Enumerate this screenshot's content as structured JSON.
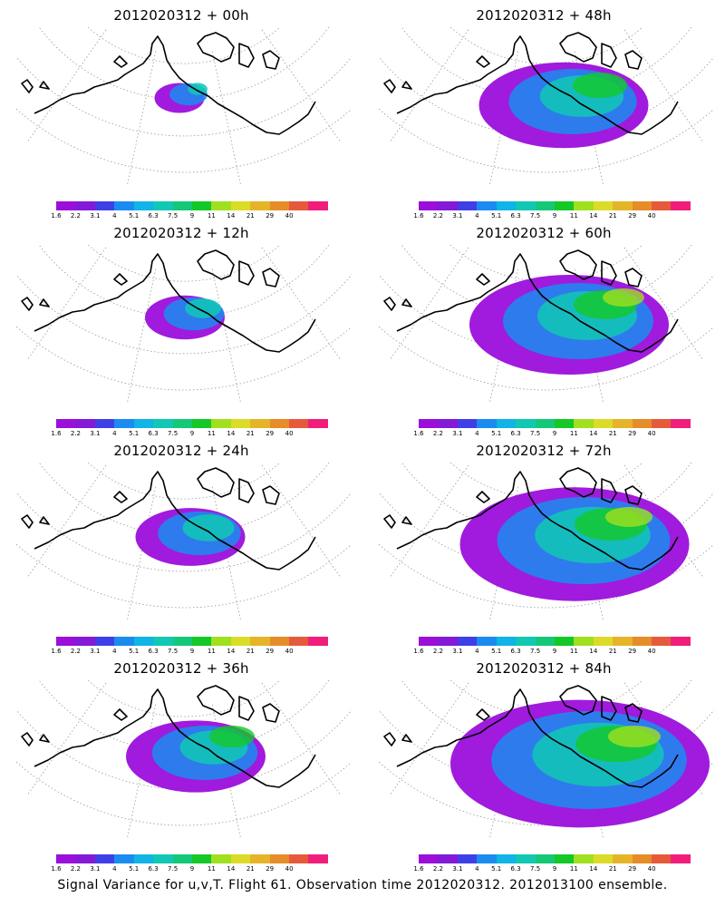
{
  "panels": [
    {
      "title": "2012020312  +  00h",
      "level": 0
    },
    {
      "title": "2012020312  +  48h",
      "level": 4
    },
    {
      "title": "2012020312  +  12h",
      "level": 1
    },
    {
      "title": "2012020312  +  60h",
      "level": 5
    },
    {
      "title": "2012020312  +  24h",
      "level": 2
    },
    {
      "title": "2012020312  +  72h",
      "level": 6
    },
    {
      "title": "2012020312  +  36h",
      "level": 3
    },
    {
      "title": "2012020312  +  84h",
      "level": 7
    }
  ],
  "colorbar": {
    "labels": [
      "1.6",
      "2.2",
      "3.1",
      "4",
      "5.1",
      "6.3",
      "7.5",
      "9",
      "11",
      "14",
      "21",
      "29",
      "40"
    ],
    "colors": [
      "#9b0fdb",
      "#8419d6",
      "#3f3fe8",
      "#1a8cf0",
      "#10b4e6",
      "#10c8b4",
      "#14c878",
      "#14c828",
      "#a0e01e",
      "#dcdc28",
      "#e6b428",
      "#e68c28",
      "#e65a3c",
      "#f01e7a"
    ]
  },
  "footer": "Signal Variance for u,v,T. Flight 61. Observation time 2012020312. 2012013100 ensemble."
}
